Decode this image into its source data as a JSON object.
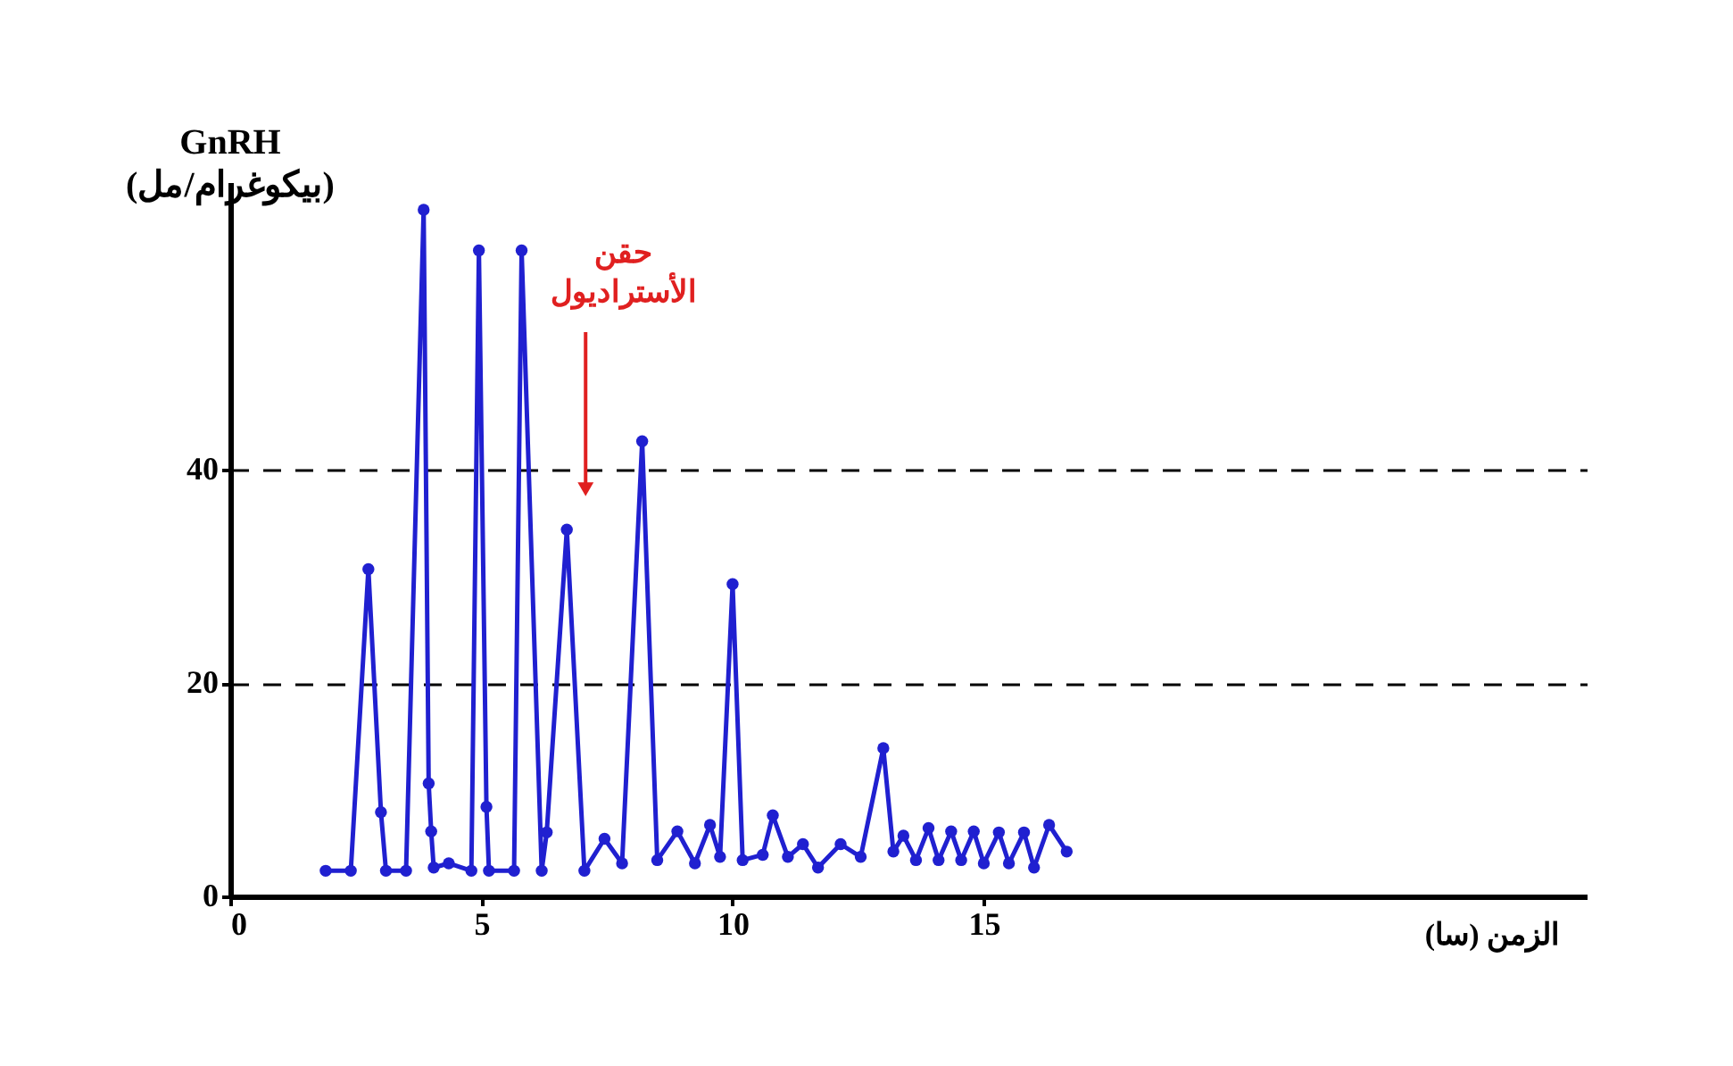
{
  "chart_data": {
    "type": "line",
    "ylabel": "GnRH (بيكوغرام/مل)",
    "xlabel": "الزمن (سا)",
    "annotations": [
      "حقن الأستراديول"
    ],
    "x": [
      1.9,
      2.4,
      2.75,
      3.0,
      3.1,
      3.5,
      3.85,
      3.95,
      4.0,
      4.05,
      4.35,
      4.8,
      4.95,
      5.1,
      5.15,
      5.65,
      5.8,
      6.2,
      6.3,
      6.7,
      7.05,
      7.45,
      7.8,
      8.2,
      8.5,
      8.9,
      9.25,
      9.55,
      9.75,
      10.0,
      10.2,
      10.6,
      10.8,
      11.1,
      11.4,
      11.7,
      12.15,
      12.55,
      13.0,
      13.2,
      13.4,
      13.65,
      13.9,
      14.1,
      14.35,
      14.55,
      14.8,
      15.0,
      15.3,
      15.5,
      15.8,
      16.0,
      16.3,
      16.65
    ],
    "series": [
      {
        "color": "#2020d0",
        "values": [
          2.4,
          2.4,
          30.7,
          7.9,
          2.4,
          2.4,
          64.4,
          10.6,
          6.1,
          2.7,
          3.1,
          2.4,
          60.6,
          8.4,
          2.4,
          2.4,
          60.6,
          2.4,
          6.0,
          34.4,
          2.4,
          5.4,
          3.1,
          42.7,
          3.4,
          6.1,
          3.1,
          6.7,
          3.7,
          29.3,
          3.4,
          3.9,
          7.6,
          3.7,
          4.9,
          2.7,
          4.9,
          3.7,
          13.9,
          4.2,
          5.7,
          3.4,
          6.4,
          3.4,
          6.1,
          3.4,
          6.1,
          3.1,
          6.0,
          3.1,
          6.0,
          2.7,
          6.7,
          4.2
        ]
      }
    ],
    "xlim": [
      0,
      27
    ],
    "ylim": [
      0,
      67
    ],
    "xticks": [
      0,
      5,
      10,
      15
    ],
    "yticks": [
      0,
      20,
      40
    ],
    "grid": "y",
    "marker": "circle",
    "line_style": "solid"
  }
}
